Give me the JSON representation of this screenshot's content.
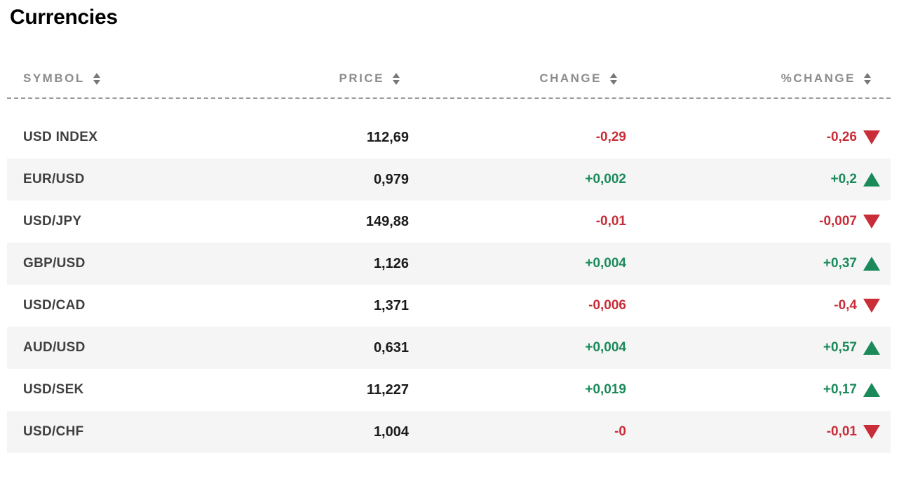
{
  "title": "Currencies",
  "colors": {
    "positive": "#1a8a5a",
    "negative": "#c82d38",
    "row_alt_bg": "#f5f5f6",
    "header_text": "#8c8c8c"
  },
  "icons": {
    "header_sort": "sort-arrows-icon",
    "up_indicator": "up-triangle-icon",
    "down_indicator": "down-triangle-icon"
  },
  "table": {
    "columns": {
      "symbol": "SYMBOL",
      "price": "PRICE",
      "change": "CHANGE",
      "pct_change": "%CHANGE"
    },
    "rows": [
      {
        "symbol": "USD INDEX",
        "price": "112,69",
        "change": "-0,29",
        "pct_change": "-0,26",
        "direction": "down"
      },
      {
        "symbol": "EUR/USD",
        "price": "0,979",
        "change": "+0,002",
        "pct_change": "+0,2",
        "direction": "up"
      },
      {
        "symbol": "USD/JPY",
        "price": "149,88",
        "change": "-0,01",
        "pct_change": "-0,007",
        "direction": "down"
      },
      {
        "symbol": "GBP/USD",
        "price": "1,126",
        "change": "+0,004",
        "pct_change": "+0,37",
        "direction": "up"
      },
      {
        "symbol": "USD/CAD",
        "price": "1,371",
        "change": "-0,006",
        "pct_change": "-0,4",
        "direction": "down"
      },
      {
        "symbol": "AUD/USD",
        "price": "0,631",
        "change": "+0,004",
        "pct_change": "+0,57",
        "direction": "up"
      },
      {
        "symbol": "USD/SEK",
        "price": "11,227",
        "change": "+0,019",
        "pct_change": "+0,17",
        "direction": "up"
      },
      {
        "symbol": "USD/CHF",
        "price": "1,004",
        "change": "-0",
        "pct_change": "-0,01",
        "direction": "down"
      }
    ]
  }
}
